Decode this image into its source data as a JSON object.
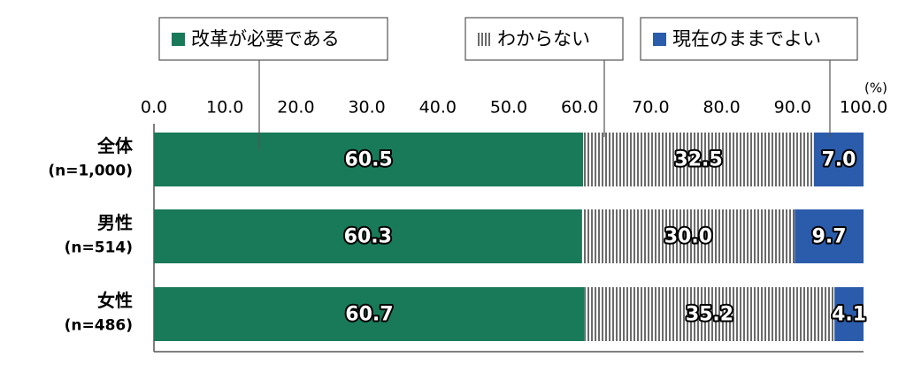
{
  "chart_data": {
    "type": "stacked-bar-horizontal",
    "unit_label": "(%)",
    "categories": [
      "全体",
      "男性",
      "女性"
    ],
    "sample_sizes": [
      "(n=1,000)",
      "(n=514)",
      "(n=486)"
    ],
    "series": [
      {
        "name": "改革が必要である",
        "color": "#187a58",
        "values": [
          60.5,
          60.3,
          60.7
        ],
        "value_labels": [
          "60.5",
          "60.3",
          "60.7"
        ]
      },
      {
        "name": "わからない",
        "color": "#6b6b6b",
        "pattern": "vertical-stripes",
        "values": [
          32.5,
          30.0,
          35.2
        ],
        "value_labels": [
          "32.5",
          "30.0",
          "35.2"
        ]
      },
      {
        "name": "現在のままでよい",
        "color": "#2b5cab",
        "values": [
          7.0,
          9.7,
          4.1
        ],
        "value_labels": [
          "7.0",
          "9.7",
          "4.1"
        ]
      }
    ],
    "xlim": [
      0,
      100
    ],
    "xticks": [
      {
        "value": 0,
        "label": "0.0"
      },
      {
        "value": 10,
        "label": "10.0"
      },
      {
        "value": 20,
        "label": "20.0"
      },
      {
        "value": 30,
        "label": "30.0"
      },
      {
        "value": 40,
        "label": "40.0"
      },
      {
        "value": 50,
        "label": "50.0"
      },
      {
        "value": 60,
        "label": "60.0"
      },
      {
        "value": 70,
        "label": "70.0"
      },
      {
        "value": 80,
        "label": "80.0"
      },
      {
        "value": 90,
        "label": "90.0"
      },
      {
        "value": 100,
        "label": "100.0"
      }
    ]
  }
}
